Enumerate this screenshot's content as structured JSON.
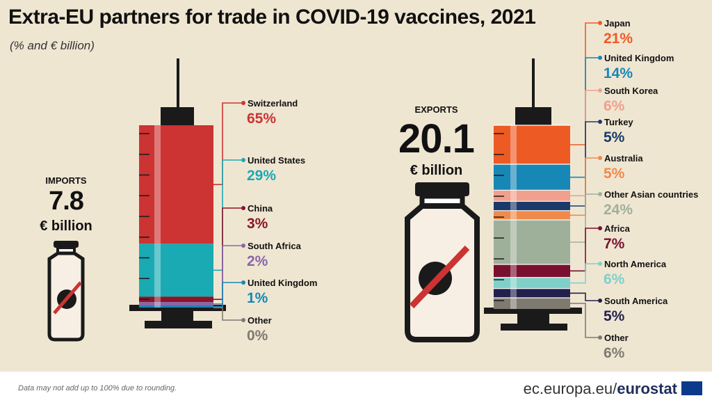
{
  "title": "Extra-EU partners for trade in COVID-19 vaccines, 2021",
  "subtitle": "(% and € billion)",
  "note": "Data may not add up to 100% due to rounding.",
  "brand": {
    "prefix": "ec.europa.eu/",
    "name": "eurostat"
  },
  "icons": {
    "vial": "vial-virus-icon",
    "syringe": "syringe-icon",
    "flag": "eu-flag-icon"
  },
  "chart_data": [
    {
      "type": "bar",
      "stacked": true,
      "label": "IMPORTS",
      "total": "7.8",
      "unit": "€ billion",
      "categories": [
        "Switzerland",
        "United States",
        "China",
        "South Africa",
        "United Kingdom",
        "Other"
      ],
      "values": [
        65,
        29,
        3,
        2,
        1,
        0
      ],
      "colors": [
        "#cc3333",
        "#1aaab4",
        "#8b1528",
        "#8a66a8",
        "#1787b6",
        "#7f7a70"
      ]
    },
    {
      "type": "bar",
      "stacked": true,
      "label": "EXPORTS",
      "total": "20.1",
      "unit": "€ billion",
      "categories": [
        "Japan",
        "United Kingdom",
        "South Korea",
        "Turkey",
        "Australia",
        "Other Asian countries",
        "Africa",
        "North America",
        "South America",
        "Other"
      ],
      "values": [
        21,
        14,
        6,
        5,
        5,
        24,
        7,
        6,
        5,
        6
      ],
      "colors": [
        "#ee5a24",
        "#1787b6",
        "#f0a08c",
        "#1a3a6a",
        "#f08a4a",
        "#9fb09a",
        "#7a1030",
        "#7fd0c8",
        "#23204e",
        "#7f7a70"
      ]
    }
  ]
}
